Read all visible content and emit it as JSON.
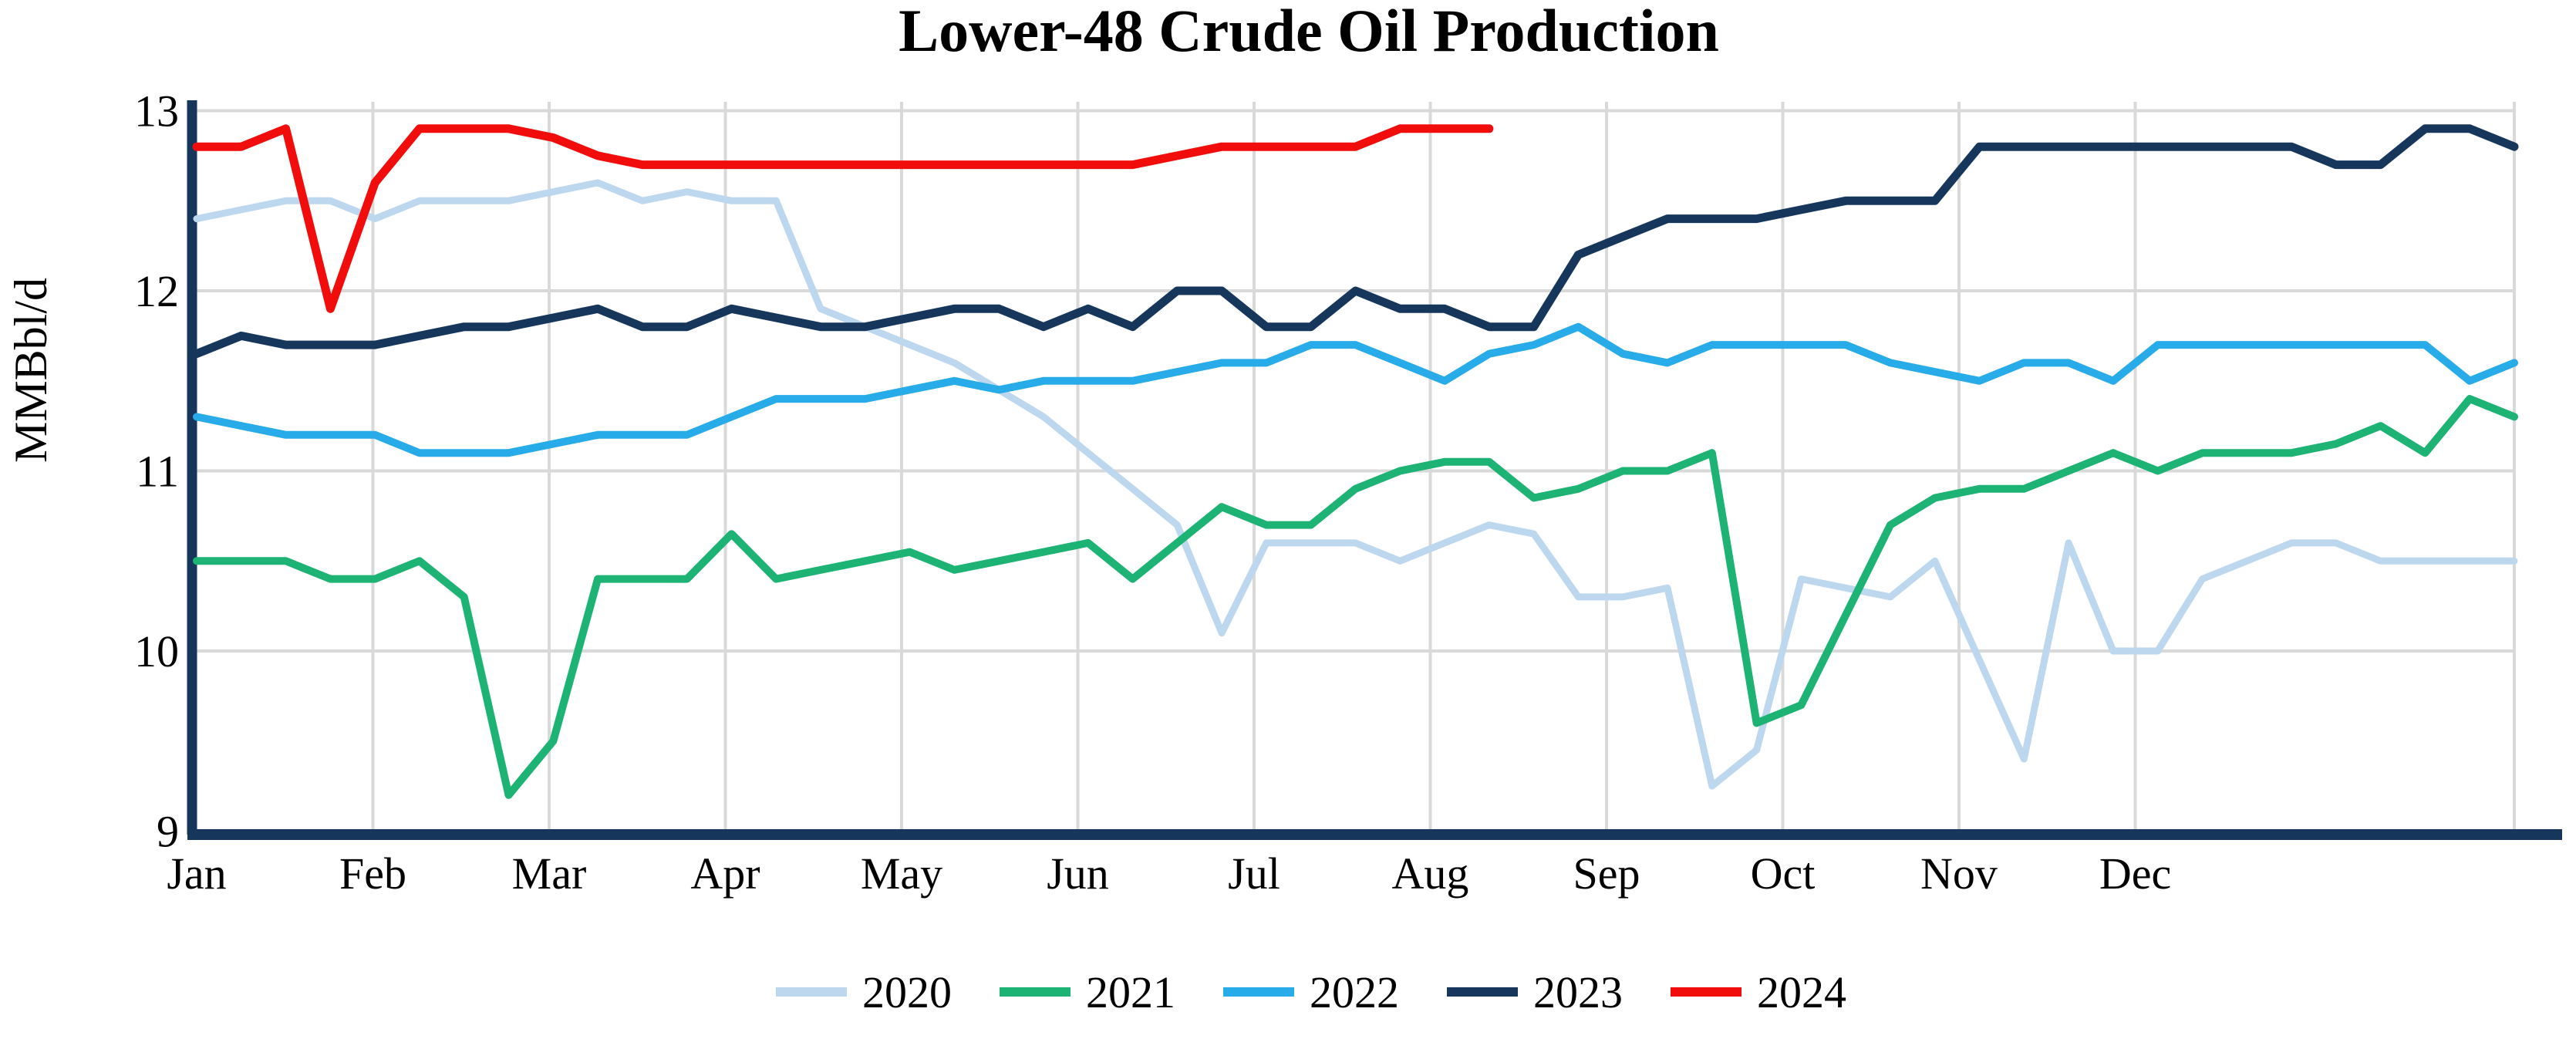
{
  "chart_data": {
    "type": "line",
    "title": "Lower-48 Crude Oil Production",
    "xlabel": "",
    "ylabel": "MMBbl/d",
    "x_unit": "weekly observations, Jan through Dec",
    "x_tick_labels": [
      "Jan",
      "Feb",
      "Mar",
      "Apr",
      "May",
      "Jun",
      "Jul",
      "Aug",
      "Sep",
      "Oct",
      "Nov",
      "Dec"
    ],
    "y_ticks": [
      13,
      12,
      11,
      10,
      9
    ],
    "ylim": [
      9,
      13
    ],
    "grid": true,
    "legend_position": "bottom",
    "axis_color": "#16365C",
    "grid_color": "#D9D9D9",
    "series": [
      {
        "name": "2020",
        "color": "#BDD7EE",
        "width": 9,
        "values": [
          12.4,
          12.45,
          12.5,
          12.5,
          12.4,
          12.5,
          12.5,
          12.5,
          12.55,
          12.6,
          12.5,
          12.55,
          12.5,
          12.5,
          11.9,
          11.8,
          11.7,
          11.6,
          11.45,
          11.3,
          11.1,
          10.9,
          10.7,
          10.1,
          10.6,
          10.6,
          10.6,
          10.5,
          10.6,
          10.7,
          10.65,
          10.3,
          10.3,
          10.35,
          9.25,
          9.45,
          10.4,
          10.35,
          10.3,
          10.5,
          9.95,
          9.4,
          10.6,
          10.0,
          10.0,
          10.4,
          10.5,
          10.6,
          10.6,
          10.5,
          10.5,
          10.5,
          10.5
        ]
      },
      {
        "name": "2021",
        "color": "#1CB374",
        "width": 10,
        "values": [
          10.5,
          10.5,
          10.5,
          10.4,
          10.4,
          10.5,
          10.3,
          9.2,
          9.5,
          10.4,
          10.4,
          10.4,
          10.65,
          10.4,
          10.45,
          10.5,
          10.55,
          10.45,
          10.5,
          10.55,
          10.6,
          10.4,
          10.6,
          10.8,
          10.7,
          10.7,
          10.9,
          11.0,
          11.05,
          11.05,
          10.85,
          10.9,
          11.0,
          11.0,
          11.1,
          9.6,
          9.7,
          10.2,
          10.7,
          10.85,
          10.9,
          10.9,
          11.0,
          11.1,
          11.0,
          11.1,
          11.1,
          11.1,
          11.15,
          11.25,
          11.1,
          11.4,
          11.3
        ]
      },
      {
        "name": "2022",
        "color": "#28ABE9",
        "width": 10,
        "values": [
          11.3,
          11.25,
          11.2,
          11.2,
          11.2,
          11.1,
          11.1,
          11.1,
          11.15,
          11.2,
          11.2,
          11.2,
          11.3,
          11.4,
          11.4,
          11.4,
          11.45,
          11.5,
          11.45,
          11.5,
          11.5,
          11.5,
          11.55,
          11.6,
          11.6,
          11.7,
          11.7,
          11.6,
          11.5,
          11.65,
          11.7,
          11.8,
          11.65,
          11.6,
          11.7,
          11.7,
          11.7,
          11.7,
          11.6,
          11.55,
          11.5,
          11.6,
          11.6,
          11.5,
          11.7,
          11.7,
          11.7,
          11.7,
          11.7,
          11.7,
          11.7,
          11.5,
          11.6
        ]
      },
      {
        "name": "2023",
        "color": "#16365C",
        "width": 11,
        "values": [
          11.65,
          11.75,
          11.7,
          11.7,
          11.7,
          11.75,
          11.8,
          11.8,
          11.85,
          11.9,
          11.8,
          11.8,
          11.9,
          11.85,
          11.8,
          11.8,
          11.85,
          11.9,
          11.9,
          11.8,
          11.9,
          11.8,
          12.0,
          12.0,
          11.8,
          11.8,
          12.0,
          11.9,
          11.9,
          11.8,
          11.8,
          12.2,
          12.3,
          12.4,
          12.4,
          12.4,
          12.45,
          12.5,
          12.5,
          12.5,
          12.8,
          12.8,
          12.8,
          12.8,
          12.8,
          12.8,
          12.8,
          12.8,
          12.7,
          12.7,
          12.9,
          12.9,
          12.8
        ]
      },
      {
        "name": "2024",
        "color": "#F20D0D",
        "width": 11,
        "values": [
          12.8,
          12.8,
          12.9,
          11.9,
          12.6,
          12.9,
          12.9,
          12.9,
          12.85,
          12.75,
          12.7,
          12.7,
          12.7,
          12.7,
          12.7,
          12.7,
          12.7,
          12.7,
          12.7,
          12.7,
          12.7,
          12.7,
          12.75,
          12.8,
          12.8,
          12.8,
          12.8,
          12.9,
          12.9,
          12.9
        ]
      }
    ]
  }
}
